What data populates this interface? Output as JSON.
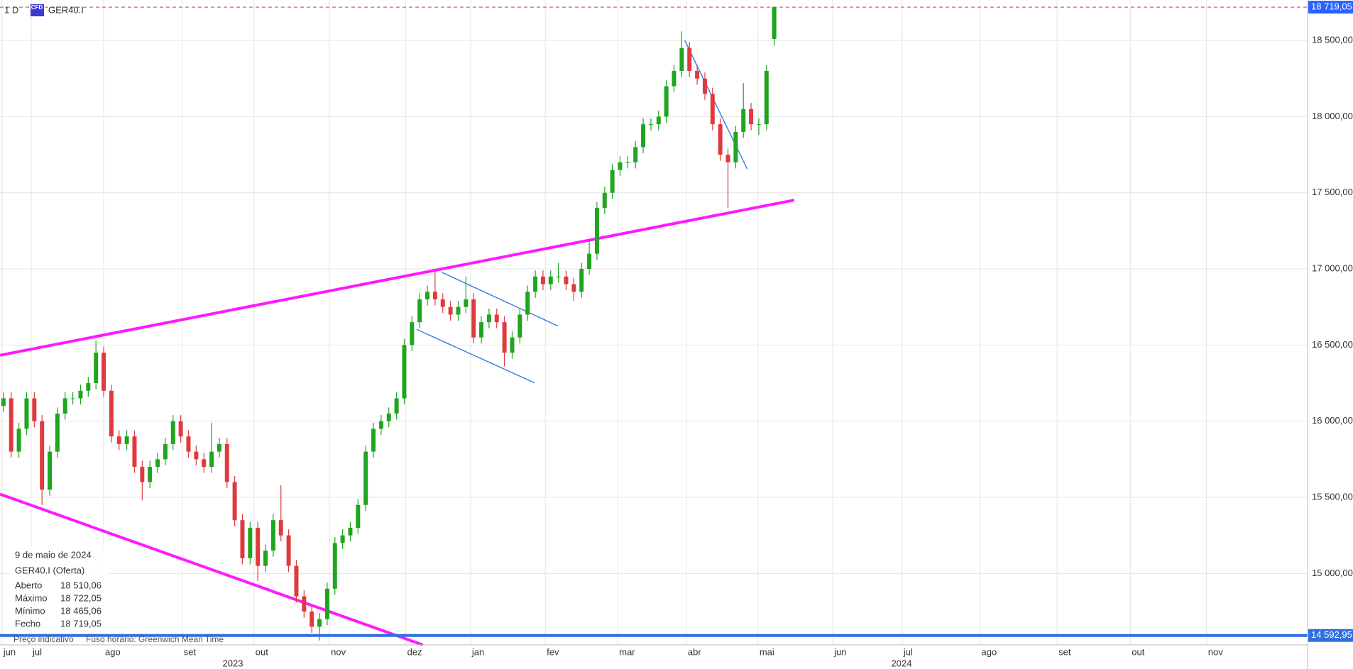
{
  "chart_data": {
    "type": "candlestick",
    "timeframe": "1 D",
    "badge": "CFD",
    "series": [
      {
        "name": "GER40.I",
        "up_color": "#1fa51f",
        "down_color": "#e0393e",
        "open": [
          16100,
          16150,
          15800,
          15950,
          16150,
          16000,
          15550,
          15800,
          16050,
          16150,
          16150,
          16200,
          16250,
          16450,
          16200,
          15900,
          15850,
          15900,
          15700,
          15600,
          15700,
          15750,
          15850,
          16000,
          15900,
          15800,
          15750,
          15700,
          15800,
          15850,
          15600,
          15350,
          15100,
          15300,
          15050,
          15150,
          15350,
          15250,
          15050,
          14850,
          14750,
          14650,
          14700,
          14900,
          15200,
          15250,
          15300,
          15450,
          15800,
          15950,
          16000,
          16050,
          16150,
          16500,
          16650,
          16800,
          16850,
          16800,
          16750,
          16700,
          16750,
          16800,
          16550,
          16650,
          16700,
          16650,
          16450,
          16550,
          16700,
          16850,
          16950,
          16900,
          16950,
          16950,
          16900,
          16850,
          17000,
          17100,
          17400,
          17500,
          17650,
          17700,
          17700,
          17800,
          17950,
          17950,
          18000,
          18200,
          18300,
          18450,
          18300,
          18250,
          18150,
          17950,
          17750,
          17700,
          17900,
          18050,
          17950,
          17950,
          18510.06
        ],
        "high": [
          16190,
          16190,
          15990,
          16190,
          16190,
          16040,
          15840,
          16090,
          16190,
          16190,
          16240,
          16290,
          16530,
          16490,
          16240,
          15940,
          15940,
          15940,
          15740,
          15740,
          15790,
          15890,
          16040,
          16040,
          15940,
          15840,
          15790,
          15990,
          15890,
          15890,
          15640,
          15390,
          15340,
          15340,
          15190,
          15390,
          15580,
          15290,
          15090,
          14890,
          14790,
          14740,
          14940,
          15240,
          15290,
          15340,
          15490,
          15840,
          15990,
          16040,
          16090,
          16190,
          16540,
          16690,
          16840,
          16890,
          16990,
          16840,
          16790,
          16790,
          16950,
          16840,
          16690,
          16740,
          16740,
          16690,
          16590,
          16740,
          16890,
          16990,
          16990,
          16990,
          17040,
          16990,
          16940,
          17040,
          17180,
          17440,
          17540,
          17690,
          17740,
          17740,
          17840,
          17990,
          17990,
          18040,
          18240,
          18340,
          18560,
          18490,
          18340,
          18290,
          18190,
          17990,
          17790,
          17940,
          18220,
          18090,
          17990,
          18340,
          18722.05
        ],
        "low": [
          16060,
          15760,
          15760,
          15910,
          15960,
          15450,
          15510,
          15760,
          16010,
          16110,
          16110,
          16160,
          16210,
          16160,
          15860,
          15810,
          15810,
          15660,
          15480,
          15560,
          15660,
          15710,
          15810,
          15860,
          15760,
          15710,
          15660,
          15660,
          15760,
          15560,
          15310,
          15060,
          15060,
          14950,
          15010,
          15110,
          15210,
          15010,
          14810,
          14710,
          14610,
          14560,
          14660,
          14860,
          15160,
          15210,
          15260,
          15410,
          15760,
          15910,
          15960,
          16010,
          16110,
          16460,
          16610,
          16760,
          16760,
          16710,
          16660,
          16660,
          16710,
          16510,
          16510,
          16610,
          16610,
          16360,
          16410,
          16510,
          16660,
          16810,
          16860,
          16860,
          16910,
          16860,
          16790,
          16810,
          16960,
          17060,
          17360,
          17460,
          17610,
          17660,
          17660,
          17760,
          17910,
          17910,
          17960,
          18160,
          18260,
          18260,
          18210,
          18110,
          17910,
          17710,
          17400,
          17660,
          17860,
          17910,
          17880,
          17910,
          18465.06
        ],
        "close": [
          16150,
          15800,
          15950,
          16150,
          16000,
          15550,
          15800,
          16050,
          16150,
          16150,
          16200,
          16250,
          16450,
          16200,
          15900,
          15850,
          15900,
          15700,
          15600,
          15700,
          15750,
          15850,
          16000,
          15900,
          15800,
          15750,
          15700,
          15800,
          15850,
          15600,
          15350,
          15100,
          15300,
          15050,
          15150,
          15350,
          15250,
          15050,
          14850,
          14750,
          14650,
          14700,
          14900,
          15200,
          15250,
          15300,
          15450,
          15800,
          15950,
          16000,
          16050,
          16150,
          16500,
          16650,
          16800,
          16850,
          16800,
          16750,
          16700,
          16750,
          16800,
          16550,
          16650,
          16700,
          16650,
          16450,
          16550,
          16700,
          16850,
          16950,
          16900,
          16950,
          16950,
          16900,
          16850,
          17000,
          17100,
          17400,
          17500,
          17650,
          17700,
          17700,
          17800,
          17950,
          17950,
          18000,
          18200,
          18300,
          18450,
          18300,
          18250,
          18150,
          17950,
          17750,
          17700,
          17900,
          18050,
          17950,
          17950,
          18300,
          18719.05
        ]
      }
    ],
    "xlim": [
      -0.45,
      169.2
    ],
    "xticks": [
      {
        "value": -0.2,
        "label": "jun"
      },
      {
        "value": 3.6,
        "label": "jul"
      },
      {
        "value": 13,
        "label": "ago"
      },
      {
        "value": 23.2,
        "label": "set"
      },
      {
        "value": 32.5,
        "label": "out"
      },
      {
        "value": 42.3,
        "label": "nov"
      },
      {
        "value": 52.2,
        "label": "dez"
      },
      {
        "value": 60.6,
        "label": "jan"
      },
      {
        "value": 70.3,
        "label": "fev"
      },
      {
        "value": 79.7,
        "label": "mar"
      },
      {
        "value": 88.6,
        "label": "abr"
      },
      {
        "value": 97.9,
        "label": "mai"
      },
      {
        "value": 107.6,
        "label": "jun"
      },
      {
        "value": 116.6,
        "label": "jul"
      },
      {
        "value": 126.7,
        "label": "ago"
      },
      {
        "value": 136.7,
        "label": "set"
      },
      {
        "value": 146.2,
        "label": "out"
      },
      {
        "value": 156.1,
        "label": "nov"
      }
    ],
    "years": [
      "2023",
      "2024"
    ],
    "ylim": [
      14531,
      18766
    ],
    "yticks": [
      {
        "value": 15000,
        "label": "15 000,00"
      },
      {
        "value": 15500,
        "label": "15 500,00"
      },
      {
        "value": 16000,
        "label": "16 000,00"
      },
      {
        "value": 16500,
        "label": "16 500,00"
      },
      {
        "value": 17000,
        "label": "17 000,00"
      },
      {
        "value": 17500,
        "label": "17 500,00"
      },
      {
        "value": 18000,
        "label": "18 000,00"
      },
      {
        "value": 18500,
        "label": "18 500,00"
      }
    ],
    "grid": true,
    "price_line": {
      "value": 18719.05,
      "label": "18 719,05",
      "color": "#e53935"
    },
    "level_line": {
      "value": 14592.95,
      "label": "14 592,95",
      "color": "#2f6fe0"
    },
    "trend_lines": [
      {
        "color": "#ff19ff",
        "x": [
          -0.45,
          102.6
        ],
        "y": [
          16433,
          17452
        ]
      },
      {
        "color": "#ff19ff",
        "x": [
          -0.45,
          54.4
        ],
        "y": [
          15521,
          14531
        ]
      },
      {
        "color": "#2f7fe0",
        "x": [
          56.9,
          71.9
        ],
        "y": [
          16977,
          16626
        ]
      },
      {
        "color": "#2f7fe0",
        "x": [
          53.6,
          68.9
        ],
        "y": [
          16603,
          16252
        ]
      },
      {
        "color": "#2f7fe0",
        "x": [
          88.4,
          96.5
        ],
        "y": [
          18500,
          17656
        ]
      }
    ],
    "info": {
      "date": "9 de maio de 2024",
      "symbol": "GER40.I (Oferta)",
      "rows": [
        {
          "label": "Aberto",
          "value": "18 510,06"
        },
        {
          "label": "Máximo",
          "value": "18 722,05"
        },
        {
          "label": "Mínimo",
          "value": "18 465,06"
        },
        {
          "label": "Fecho",
          "value": "18 719,05"
        }
      ]
    },
    "footer": [
      "Preço indicativo",
      "Fuso horário: Greenwich Mean Time"
    ]
  }
}
